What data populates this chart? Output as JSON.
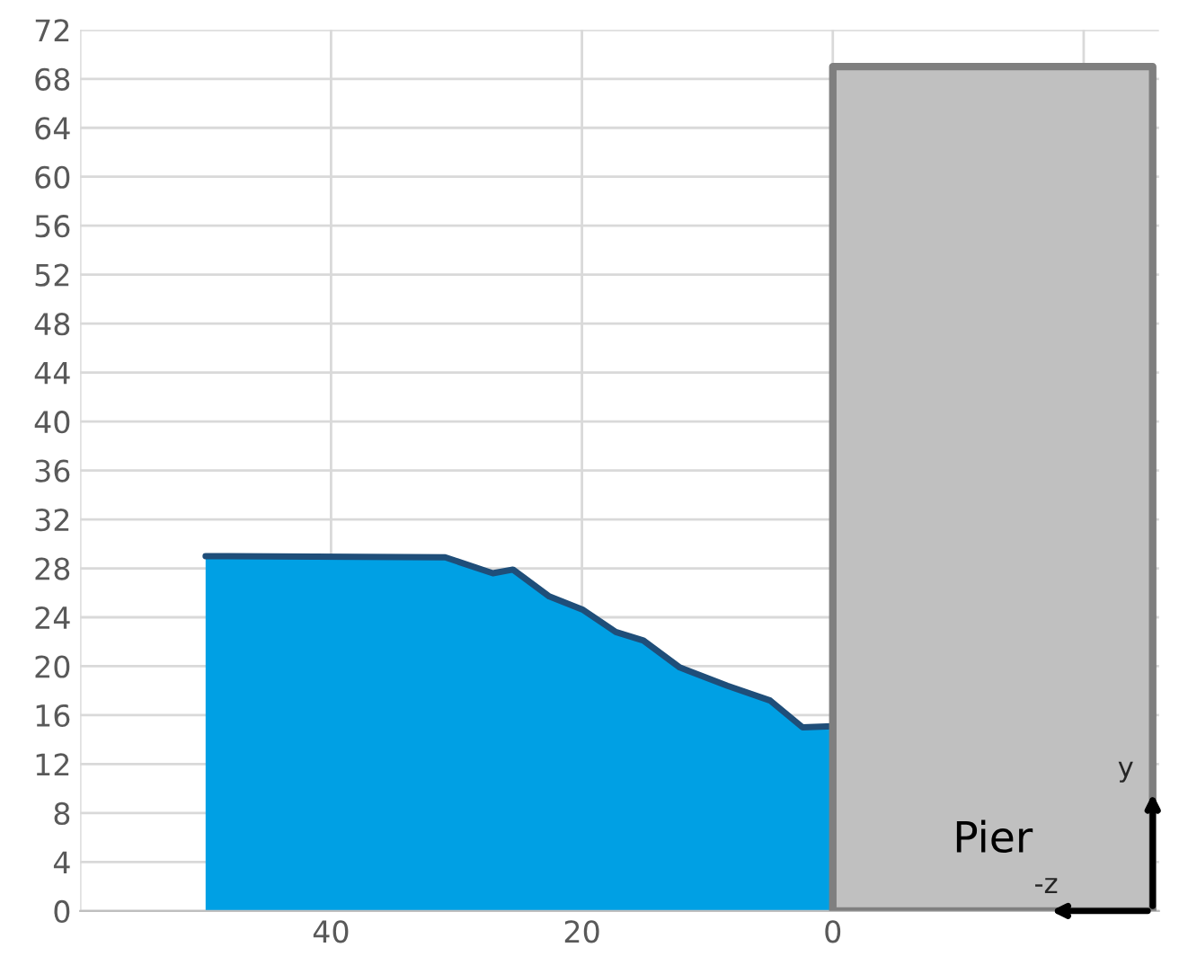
{
  "chart_data": {
    "type": "area",
    "series": [
      {
        "color": "#00a0e4",
        "x": [
          50,
          30.9,
          27.1,
          25.5,
          22.6,
          19.9,
          17.3,
          15.1,
          12.2,
          8.4,
          5.0,
          2.4,
          0
        ],
        "values": [
          29,
          28.9,
          27.6,
          27.9,
          25.7,
          24.6,
          22.8,
          22.1,
          19.9,
          18.4,
          17.2,
          15.0,
          15.1
        ]
      },
      {
        "name": "Pier",
        "color": "#c0c0c0",
        "x": [
          0,
          -25.5
        ],
        "values": [
          69,
          69
        ]
      }
    ],
    "annotations": [
      {
        "text": "y",
        "x": -25.5,
        "y": 10
      },
      {
        "text": "-z",
        "x": -17,
        "y": 0
      }
    ],
    "xlim": [
      60,
      -26
    ],
    "xticks": [
      {
        "value": 60,
        "label": null
      },
      40,
      20,
      0,
      {
        "value": -20,
        "label": null
      }
    ],
    "ylim": [
      0,
      72
    ],
    "yticks": [
      0,
      4,
      8,
      12,
      16,
      20,
      24,
      28,
      32,
      36,
      40,
      44,
      48,
      52,
      56,
      60,
      64,
      68,
      72
    ],
    "grid": true,
    "legend": false
  }
}
